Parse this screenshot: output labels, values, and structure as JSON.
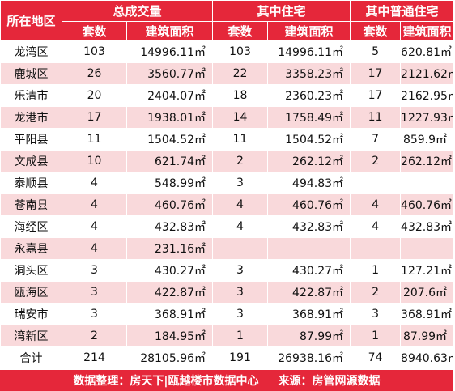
{
  "header": {
    "district": "所在地区",
    "groups": [
      "总成交量",
      "其中住宅",
      "其中普通住宅"
    ],
    "sub": [
      "套数",
      "建筑面积",
      "套数",
      "建筑面积",
      "套数",
      "建筑面积"
    ]
  },
  "rows": [
    [
      "龙湾区",
      "103",
      "14996.11㎡",
      "103",
      "14996.11㎡",
      "5",
      "620.81㎡"
    ],
    [
      "鹿城区",
      "26",
      "3560.77㎡",
      "22",
      "3358.23㎡",
      "17",
      "2121.62㎡"
    ],
    [
      "乐清市",
      "20",
      "2404.07㎡",
      "18",
      "2360.23㎡",
      "17",
      "2162.95㎡"
    ],
    [
      "龙港市",
      "17",
      "1938.01㎡",
      "14",
      "1758.49㎡",
      "11",
      "1227.93㎡"
    ],
    [
      "平阳县",
      "11",
      "1504.52㎡",
      "11",
      "1504.52㎡",
      "7",
      "859.9㎡"
    ],
    [
      "文成县",
      "10",
      "621.74㎡",
      "2",
      "262.12㎡",
      "2",
      "262.12㎡"
    ],
    [
      "泰顺县",
      "4",
      "548.99㎡",
      "3",
      "494.83㎡",
      "",
      ""
    ],
    [
      "苍南县",
      "4",
      "460.76㎡",
      "4",
      "460.76㎡",
      "4",
      "460.76㎡"
    ],
    [
      "海经区",
      "4",
      "432.83㎡",
      "4",
      "432.83㎡",
      "4",
      "432.83㎡"
    ],
    [
      "永嘉县",
      "4",
      "231.16㎡",
      "",
      "",
      "",
      ""
    ],
    [
      "洞头区",
      "3",
      "430.27㎡",
      "3",
      "430.27㎡",
      "1",
      "127.21㎡"
    ],
    [
      "瓯海区",
      "3",
      "422.87㎡",
      "3",
      "422.87㎡",
      "2",
      "207.6㎡"
    ],
    [
      "瑞安市",
      "3",
      "368.91㎡",
      "3",
      "368.91㎡",
      "3",
      "368.91㎡"
    ],
    [
      "湾新区",
      "2",
      "184.95㎡",
      "1",
      "87.99㎡",
      "1",
      "87.99㎡"
    ],
    [
      "合计",
      "214",
      "28105.96㎡",
      "191",
      "26938.16㎡",
      "74",
      "8940.63㎡"
    ]
  ],
  "footer": {
    "left": "数据整理：房天下|瓯越楼市数据中心",
    "right": "来源：房管网源数据"
  }
}
